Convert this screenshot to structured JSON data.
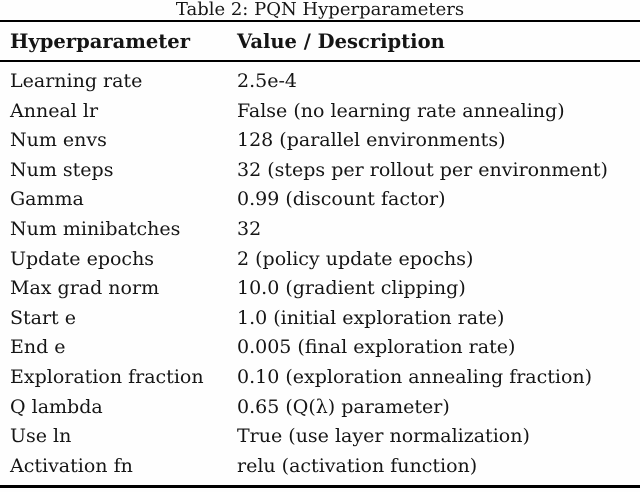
{
  "table": {
    "caption": "Table 2: PQN Hyperparameters",
    "columns": {
      "param": "Hyperparameter",
      "value": "Value / Description"
    },
    "rows": [
      {
        "param": "Learning rate",
        "value": "2.5e-4"
      },
      {
        "param": "Anneal lr",
        "value": "False (no learning rate annealing)"
      },
      {
        "param": "Num envs",
        "value": "128 (parallel environments)"
      },
      {
        "param": "Num steps",
        "value": "32 (steps per rollout per environment)"
      },
      {
        "param": "Gamma",
        "value": "0.99 (discount factor)"
      },
      {
        "param": "Num minibatches",
        "value": "32"
      },
      {
        "param": "Update epochs",
        "value": "2 (policy update epochs)"
      },
      {
        "param": "Max grad norm",
        "value": "10.0 (gradient clipping)"
      },
      {
        "param": "Start e",
        "value": "1.0 (initial exploration rate)"
      },
      {
        "param": "End e",
        "value": "0.005 (final exploration rate)"
      },
      {
        "param": "Exploration fraction",
        "value": "0.10 (exploration annealing fraction)"
      },
      {
        "param": "Q lambda",
        "value": "0.65 (Q(λ) parameter)"
      },
      {
        "param": "Use ln",
        "value": "True (use layer normalization)"
      },
      {
        "param": "Activation fn",
        "value": "relu (activation function)"
      }
    ],
    "colors": {
      "text": "#151515",
      "rule": "#000000",
      "background": "#fefefe"
    }
  }
}
